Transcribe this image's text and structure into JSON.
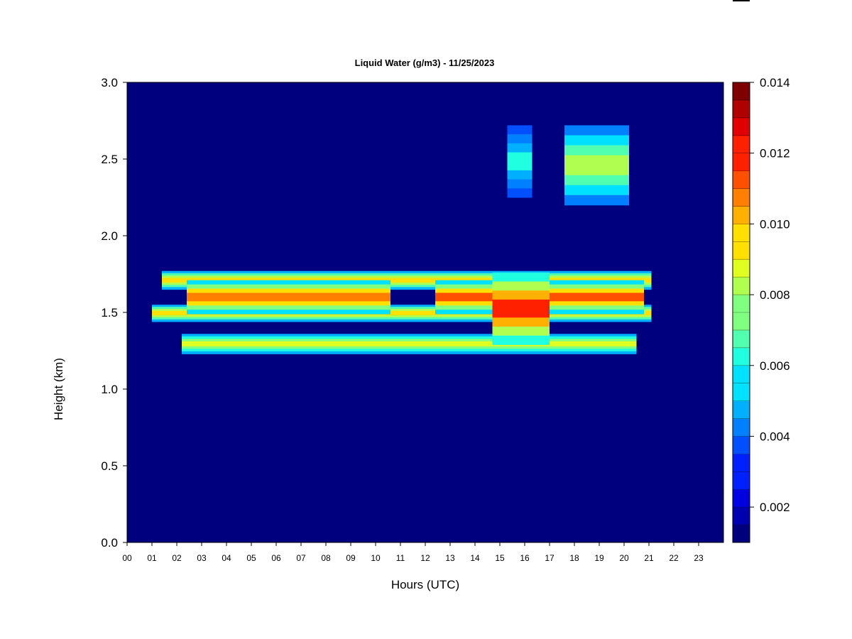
{
  "chart_data": {
    "type": "heatmap",
    "title": "Liquid Water (g/m3) - 11/25/2023",
    "xlabel": "Hours (UTC)",
    "ylabel": "Height (km)",
    "xlim": [
      0,
      24
    ],
    "ylim": [
      0,
      3
    ],
    "x_ticks": [
      "00",
      "01",
      "02",
      "03",
      "04",
      "05",
      "06",
      "07",
      "08",
      "09",
      "10",
      "11",
      "12",
      "13",
      "14",
      "15",
      "16",
      "17",
      "18",
      "19",
      "20",
      "21",
      "22",
      "23"
    ],
    "y_ticks": [
      "0.0",
      "0.5",
      "1.0",
      "1.5",
      "2.0",
      "2.5",
      "3.0"
    ],
    "grid": false,
    "colorbar": {
      "range": [
        0.001,
        0.014
      ],
      "levels": 26,
      "tick_labels": [
        "0.002",
        "0.004",
        "0.006",
        "0.008",
        "0.010",
        "0.012",
        "0.014"
      ],
      "tick_values": [
        0.002,
        0.004,
        0.006,
        0.008,
        0.01,
        0.012,
        0.014
      ]
    },
    "background_value": 0.0,
    "features": [
      {
        "x": [
          1.4,
          21.1
        ],
        "y": [
          1.65,
          1.77
        ],
        "value": 0.0105
      },
      {
        "x": [
          1.0,
          21.1
        ],
        "y": [
          1.44,
          1.55
        ],
        "value": 0.0105
      },
      {
        "x": [
          2.2,
          20.5
        ],
        "y": [
          1.23,
          1.36
        ],
        "value": 0.0095
      },
      {
        "x": [
          2.4,
          10.6
        ],
        "y": [
          1.49,
          1.71
        ],
        "value": 0.0118
      },
      {
        "x": [
          12.4,
          20.8
        ],
        "y": [
          1.49,
          1.71
        ],
        "value": 0.0122
      },
      {
        "x": [
          14.7,
          17.0
        ],
        "y": [
          1.29,
          1.76
        ],
        "value": 0.0132
      },
      {
        "x": [
          15.3,
          16.3
        ],
        "y": [
          2.25,
          2.72
        ],
        "value": 0.0065
      },
      {
        "x": [
          17.6,
          20.2
        ],
        "y": [
          2.2,
          2.72
        ],
        "value": 0.0085
      }
    ]
  },
  "colors": {
    "background_field": "#00007f",
    "palette": [
      "#00007f",
      "#0000b0",
      "#0000e0",
      "#0020ff",
      "#0050ff",
      "#0080ff",
      "#00b0ff",
      "#00e0ff",
      "#20ffe0",
      "#50ffb0",
      "#80ff80",
      "#b0ff50",
      "#e0ff20",
      "#ffe000",
      "#ffb000",
      "#ff8000",
      "#ff5000",
      "#ff2000",
      "#e00000",
      "#b00000",
      "#7f0000"
    ]
  }
}
